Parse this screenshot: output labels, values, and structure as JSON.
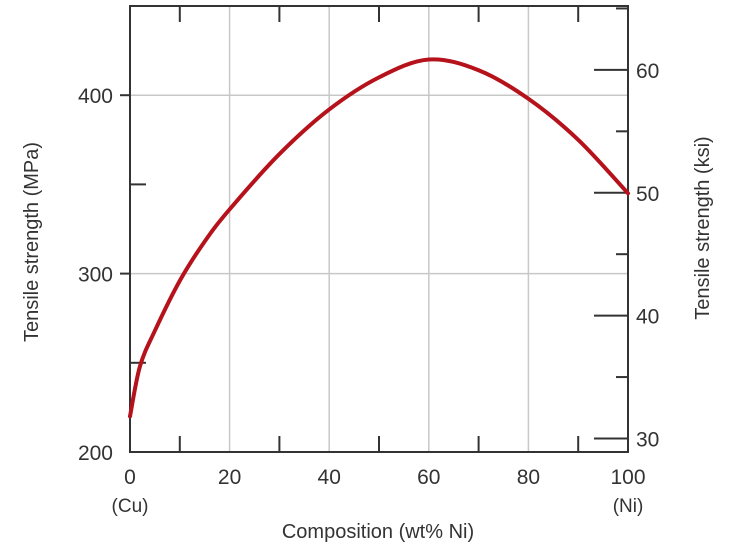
{
  "chart_data": {
    "type": "line",
    "xlabel": "Composition (wt% Ni)",
    "ylabel": "Tensile strength (MPa)",
    "y2label": "Tensile strength (ksi)",
    "xlim": [
      0,
      100
    ],
    "ylim": [
      200,
      450
    ],
    "y2lim": [
      28.9,
      65.2
    ],
    "xticks": [
      "0",
      "20",
      "40",
      "60",
      "80",
      "100"
    ],
    "yticks": [
      "200",
      "300",
      "400"
    ],
    "y2ticks": [
      "30",
      "40",
      "50",
      "60"
    ],
    "x_end_labels": {
      "left": "(Cu)",
      "right": "(Ni)"
    },
    "grid": true,
    "series": [
      {
        "color": "#b5121b",
        "x": [
          0,
          2,
          5,
          10,
          15,
          20,
          30,
          40,
          50,
          60,
          70,
          80,
          90,
          100
        ],
        "y": [
          220,
          248,
          268,
          296,
          318,
          336,
          367,
          392,
          410,
          420,
          414,
          398,
          375,
          345
        ]
      }
    ]
  }
}
